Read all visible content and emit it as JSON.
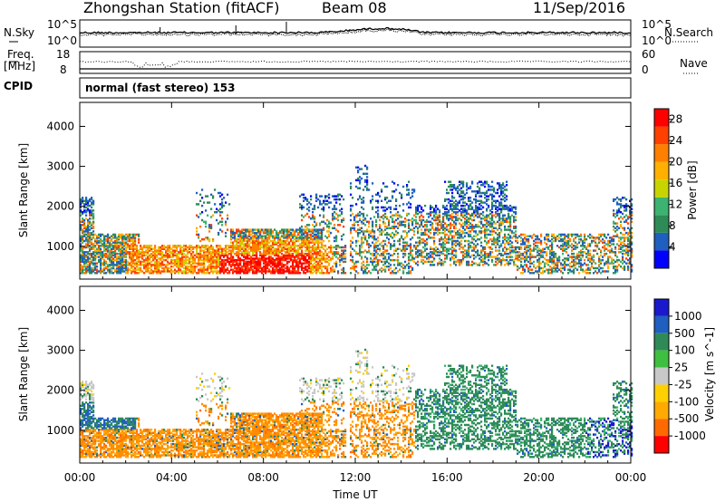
{
  "header": {
    "station_title": "Zhongshan Station (fitACF)",
    "beam": "Beam 08",
    "date": "11/Sep/2016",
    "mode": "normal (fast stereo) 153"
  },
  "side_labels": {
    "nsky": "N.Sky",
    "nsearch": "N.Search",
    "freq_line1": "Freq.",
    "freq_line2": "[MHz]",
    "nave": "Nave",
    "cpid": "CPID"
  },
  "noise_panel": {
    "left_ticks": [
      "10^5",
      "10^0"
    ],
    "right_ticks": [
      "10^5",
      "10^0"
    ]
  },
  "freq_panel": {
    "left_ticks": [
      "18",
      "8"
    ],
    "right_ticks": [
      "60",
      "0"
    ]
  },
  "colors": {
    "power": [
      "#0000ff",
      "#1f5fbf",
      "#2e8b57",
      "#3cb371",
      "#c8d400",
      "#ffb000",
      "#ff7f00",
      "#ff4000",
      "#ff0000"
    ],
    "velocity": [
      "#ff0000",
      "#ff6a00",
      "#ffaa00",
      "#c8c8c8",
      "#3fbf3f",
      "#2e8b57",
      "#1f5fbf",
      "#1a1acc"
    ]
  },
  "chart_data": [
    {
      "type": "heatmap",
      "quantity": "Power",
      "ylabel": "Slant Range [km]",
      "xlabel": "",
      "ylim": [
        180,
        4600
      ],
      "yticks": [
        "1000",
        "2000",
        "3000",
        "4000"
      ],
      "xticks": [
        "00:00",
        "04:00",
        "08:00",
        "12:00",
        "16:00",
        "20:00",
        "00:00"
      ],
      "colorbar": {
        "label": "Power [dB]",
        "tick_labels": [
          "4",
          "8",
          "12",
          "16",
          "20",
          "24",
          "28"
        ],
        "range": [
          0,
          30
        ]
      }
    },
    {
      "type": "heatmap",
      "quantity": "Velocity",
      "ylabel": "Slant Range [km]",
      "xlabel": "Time UT",
      "ylim": [
        180,
        4600
      ],
      "yticks": [
        "1000",
        "2000",
        "3000",
        "4000"
      ],
      "xticks": [
        "00:00",
        "04:00",
        "08:00",
        "12:00",
        "16:00",
        "20:00",
        "00:00"
      ],
      "colorbar": {
        "label": "Velocity [m s^-1]",
        "tick_labels": [
          "1000",
          "500",
          "100",
          "25",
          "-25",
          "-100",
          "-500",
          "-1000"
        ]
      }
    }
  ]
}
